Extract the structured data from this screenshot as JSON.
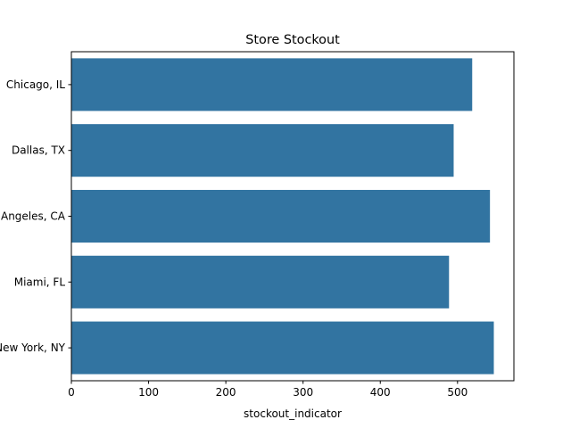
{
  "chart_data": {
    "type": "bar",
    "orientation": "horizontal",
    "title": "Store Stockout",
    "xlabel": "stockout_indicator",
    "ylabel": "",
    "categories": [
      "Chicago, IL",
      "Dallas, TX",
      "Los Angeles, CA",
      "Miami, FL",
      "New York, NY"
    ],
    "values": [
      519,
      495,
      542,
      489,
      547
    ],
    "xlim": [
      0,
      573
    ],
    "xticks": [
      0,
      100,
      200,
      300,
      400,
      500
    ],
    "grid": false,
    "color": "#3274a1"
  }
}
